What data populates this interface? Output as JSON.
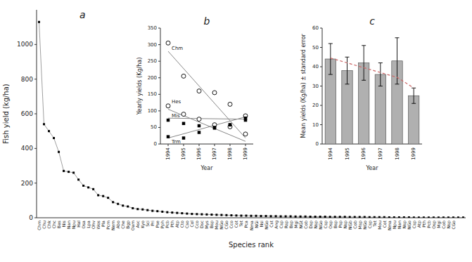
{
  "chart_data": [
    {
      "type": "line",
      "title": "a",
      "xlabel": "Species rank",
      "ylabel": "Fish yield (kg/ha)",
      "categories": [
        "Chm",
        "Chu",
        "Chk",
        "Chc",
        "Bas",
        "Nis",
        "Nan",
        "Npu",
        "Hal",
        "Osa",
        "Lpa",
        "Ohv",
        "Wos",
        "Pla",
        "Pcm",
        "Nem",
        "Abo",
        "Che",
        "Bgp",
        "Oam",
        "Asc",
        "Kyo",
        "Sci",
        "Pri",
        "Pse",
        "Pph",
        "Pcb",
        "Pth",
        "Atp",
        "Cto",
        "Cso",
        "Col",
        "Cco",
        "Dsc",
        "Mys",
        "Bsp",
        "Mou",
        "NGo",
        "CGo",
        "Cco",
        "Cot",
        "Tet",
        "Pca",
        "Nma",
        "NGi",
        "Nsi",
        "NGo",
        "Cst",
        "Ang",
        "Csp",
        "Rsp",
        "Bsp",
        "Mgi",
        "NGt",
        "Cob",
        "Dsp",
        "Nsp",
        "NGo",
        "Csp",
        "Osp",
        "Bsp",
        "Psp",
        "Nsp",
        "NGb",
        "Cob",
        "Msp",
        "NGo",
        "Csp",
        "Tet",
        "Mou",
        "Cot",
        "Nma",
        "Npu",
        "Nan",
        "Nsp",
        "NGo",
        "Csp",
        "Atp",
        "Pth",
        "Pcb",
        "Osp",
        "Mgi",
        "Cob",
        "Nsp",
        "CGo",
        null,
        null
      ],
      "values": [
        1130,
        540,
        500,
        460,
        380,
        270,
        265,
        260,
        220,
        185,
        175,
        165,
        130,
        125,
        115,
        90,
        80,
        70,
        65,
        55,
        50,
        48,
        44,
        40,
        38,
        35,
        32,
        30,
        28,
        26,
        24,
        22,
        21,
        20,
        19,
        18,
        17,
        16,
        15,
        14,
        13,
        12,
        12,
        11,
        11,
        10,
        10,
        9,
        9,
        8,
        8,
        8,
        7,
        7,
        7,
        6,
        6,
        6,
        6,
        5,
        5,
        5,
        5,
        4,
        4,
        4,
        4,
        3,
        3,
        3,
        3,
        2,
        2,
        2,
        2,
        2,
        1,
        1,
        1,
        1,
        1,
        1,
        1,
        1,
        1,
        1,
        1
      ],
      "marker": "square",
      "ylim": [
        0,
        1200
      ],
      "yticks": [
        0,
        200,
        400,
        600,
        800,
        1000
      ],
      "grid": false
    },
    {
      "type": "scatter",
      "title": "b",
      "xlabel": "Year",
      "ylabel": "Yearly yields (Kg/ha)",
      "x": [
        1994,
        1995,
        1996,
        1997,
        1998,
        1999
      ],
      "xlim": [
        1993.5,
        1999.5
      ],
      "xticks": [
        1994,
        1995,
        1996,
        1997,
        1998,
        1999
      ],
      "ylim": [
        0,
        350
      ],
      "yticks": [
        0,
        50,
        100,
        150,
        200,
        250,
        300,
        350
      ],
      "trend_x": [
        1994,
        1999
      ],
      "series": [
        {
          "name": "Chm",
          "marker": "circle",
          "values": [
            305,
            205,
            160,
            155,
            120,
            85
          ],
          "trend": [
            280,
            18
          ]
        },
        {
          "name": "Hes",
          "marker": "circle",
          "values": [
            115,
            90,
            75,
            58,
            52,
            30
          ],
          "trend": [
            105,
            8
          ]
        },
        {
          "name": "Mis",
          "marker": "square",
          "values": [
            72,
            62,
            55,
            50,
            58,
            72
          ],
          "trend": [
            78,
            75
          ]
        },
        {
          "name": "Trm",
          "marker": "square",
          "values": [
            22,
            18,
            35,
            48,
            58,
            78
          ],
          "trend": [
            18,
            82
          ]
        }
      ],
      "grid": false
    },
    {
      "type": "bar",
      "title": "c",
      "xlabel": "Year",
      "ylabel": "Mean yields (Kg/ha) ± standard error",
      "categories": [
        "1994",
        "1995",
        "1996",
        "1997",
        "1998",
        "1999"
      ],
      "values": [
        44,
        38,
        42,
        36,
        43,
        25
      ],
      "error_upper": [
        8,
        7,
        9,
        6,
        12,
        4
      ],
      "error_lower": [
        8,
        7,
        9,
        6,
        12,
        4
      ],
      "color": "#b0b0b0",
      "trend": {
        "values": [
          44.5,
          42.0,
          39.5,
          37.0,
          34.5,
          29.0
        ],
        "color": "#cc6666",
        "line_style": "dashed"
      },
      "ylim": [
        0,
        60
      ],
      "yticks": [
        0,
        10,
        20,
        30,
        40,
        50,
        60
      ],
      "grid": false
    }
  ]
}
